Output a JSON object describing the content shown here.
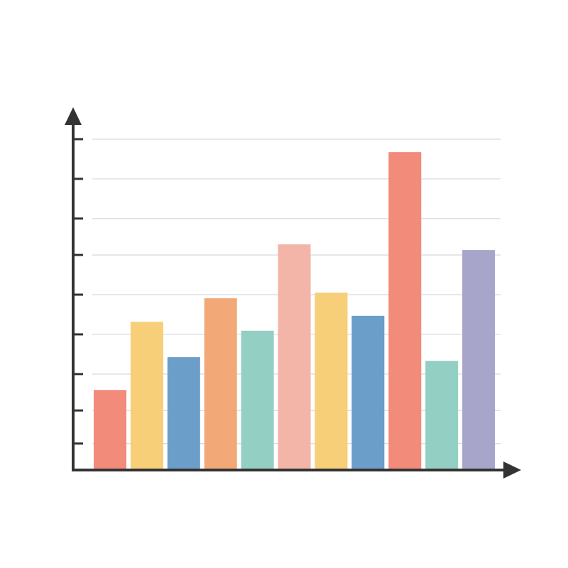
{
  "chart_data": {
    "type": "bar",
    "categories": [
      null,
      null,
      null,
      null,
      null,
      null,
      null,
      null,
      null,
      null,
      null
    ],
    "values": [
      24.2,
      44.8,
      34.1,
      51.9,
      42.1,
      68.2,
      53.6,
      46.6,
      96.1,
      33,
      66.5
    ],
    "colors": [
      "#f28b7a",
      "#f7cf78",
      "#6b9ec8",
      "#f2a877",
      "#94cfc4",
      "#f2b5a8",
      "#f7cf78",
      "#6b9ec8",
      "#f28b7a",
      "#94cfc4",
      "#a8a5cb"
    ],
    "ylim": [
      0,
      100
    ],
    "yticks": [
      8,
      18,
      29,
      41,
      53,
      65,
      76,
      88,
      100
    ],
    "grid": true
  }
}
